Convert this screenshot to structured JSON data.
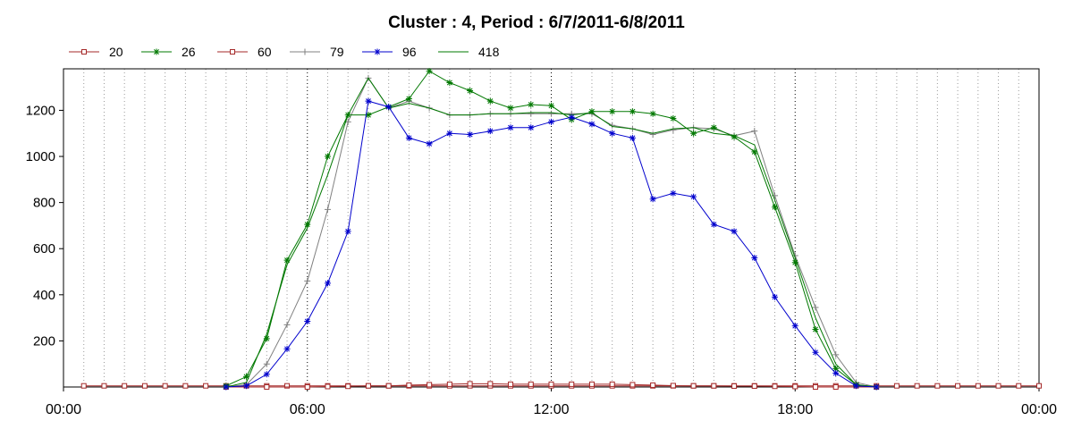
{
  "chart_data": {
    "type": "line",
    "title": "Cluster : 4, Period : 6/7/2011-6/8/2011",
    "xlabel": "",
    "ylabel": "",
    "x_range_hours": [
      0,
      24
    ],
    "x_ticks": [
      {
        "hour": 0,
        "label": "00:00"
      },
      {
        "hour": 6,
        "label": "06:00"
      },
      {
        "hour": 12,
        "label": "12:00"
      },
      {
        "hour": 18,
        "label": "18:00"
      },
      {
        "hour": 24,
        "label": "00:00"
      }
    ],
    "ylim": [
      0,
      1380
    ],
    "y_ticks": [
      200,
      400,
      600,
      800,
      1000,
      1200
    ],
    "grid": "vertical dotted lines every 0.5 hour",
    "legend_position": "top-left",
    "series": [
      {
        "name": "20",
        "color": "#a52a2a",
        "marker": "square",
        "points": [
          [
            0.5,
            5
          ],
          [
            1,
            5
          ],
          [
            1.5,
            5
          ],
          [
            2,
            5
          ],
          [
            2.5,
            5
          ],
          [
            3,
            5
          ],
          [
            3.5,
            5
          ],
          [
            4,
            5
          ],
          [
            4.5,
            5
          ],
          [
            5,
            5
          ],
          [
            5.5,
            5
          ],
          [
            6,
            5
          ],
          [
            6.5,
            5
          ],
          [
            7,
            5
          ],
          [
            7.5,
            5
          ],
          [
            8,
            5
          ],
          [
            8.5,
            5
          ],
          [
            9,
            5
          ],
          [
            9.5,
            5
          ],
          [
            10,
            5
          ],
          [
            10.5,
            5
          ],
          [
            11,
            5
          ],
          [
            11.5,
            5
          ],
          [
            12,
            5
          ],
          [
            12.5,
            5
          ],
          [
            13,
            5
          ],
          [
            13.5,
            5
          ],
          [
            14,
            5
          ],
          [
            14.5,
            5
          ],
          [
            15,
            5
          ],
          [
            15.5,
            5
          ],
          [
            16,
            5
          ],
          [
            16.5,
            5
          ],
          [
            17,
            5
          ],
          [
            17.5,
            5
          ],
          [
            18,
            5
          ],
          [
            18.5,
            5
          ],
          [
            19,
            5
          ],
          [
            19.5,
            5
          ],
          [
            20,
            5
          ],
          [
            20.5,
            5
          ],
          [
            21,
            5
          ],
          [
            21.5,
            5
          ],
          [
            22,
            5
          ],
          [
            22.5,
            5
          ],
          [
            23,
            5
          ],
          [
            23.5,
            5
          ],
          [
            24,
            5
          ]
        ]
      },
      {
        "name": "26",
        "color": "#007800",
        "marker": "asterisk",
        "points": [
          [
            4,
            5
          ],
          [
            4.5,
            45
          ],
          [
            5,
            210
          ],
          [
            5.5,
            550
          ],
          [
            6,
            705
          ],
          [
            6.5,
            1000
          ],
          [
            7,
            1180
          ],
          [
            7.5,
            1180
          ],
          [
            8,
            1215
          ],
          [
            8.5,
            1250
          ],
          [
            9,
            1370
          ],
          [
            9.5,
            1320
          ],
          [
            10,
            1285
          ],
          [
            10.5,
            1240
          ],
          [
            11,
            1210
          ],
          [
            11.5,
            1225
          ],
          [
            12,
            1220
          ],
          [
            12.5,
            1160
          ],
          [
            13,
            1195
          ],
          [
            13.5,
            1195
          ],
          [
            14,
            1195
          ],
          [
            14.5,
            1185
          ],
          [
            15,
            1165
          ],
          [
            15.5,
            1100
          ],
          [
            16,
            1125
          ],
          [
            16.5,
            1085
          ],
          [
            17,
            1020
          ],
          [
            17.5,
            780
          ],
          [
            18,
            540
          ],
          [
            18.5,
            250
          ],
          [
            19,
            80
          ],
          [
            19.5,
            10
          ],
          [
            20,
            0
          ]
        ]
      },
      {
        "name": "60",
        "color": "#a52a2a",
        "marker": "square",
        "points": [
          [
            4,
            0
          ],
          [
            5,
            0
          ],
          [
            6,
            0
          ],
          [
            6.5,
            2
          ],
          [
            7,
            3
          ],
          [
            7.5,
            5
          ],
          [
            8,
            5
          ],
          [
            8.5,
            8
          ],
          [
            9,
            10
          ],
          [
            9.5,
            12
          ],
          [
            10,
            14
          ],
          [
            10.5,
            14
          ],
          [
            11,
            12
          ],
          [
            11.5,
            12
          ],
          [
            12,
            12
          ],
          [
            12.5,
            12
          ],
          [
            13,
            12
          ],
          [
            13.5,
            12
          ],
          [
            14,
            10
          ],
          [
            14.5,
            8
          ],
          [
            15,
            6
          ],
          [
            15.5,
            5
          ],
          [
            16,
            5
          ],
          [
            16.5,
            4
          ],
          [
            17,
            4
          ],
          [
            17.5,
            3
          ],
          [
            18,
            2
          ],
          [
            18.5,
            0
          ],
          [
            19,
            0
          ],
          [
            20,
            0
          ]
        ]
      },
      {
        "name": "79",
        "color": "#808080",
        "marker": "plus",
        "points": [
          [
            4,
            0
          ],
          [
            4.5,
            10
          ],
          [
            5,
            100
          ],
          [
            5.5,
            270
          ],
          [
            6,
            460
          ],
          [
            6.5,
            770
          ],
          [
            7,
            1150
          ],
          [
            7.5,
            1340
          ],
          [
            8,
            1210
          ],
          [
            8.5,
            1240
          ],
          [
            9,
            1210
          ],
          [
            9.5,
            1180
          ],
          [
            10,
            1180
          ],
          [
            10.5,
            1185
          ],
          [
            11,
            1185
          ],
          [
            11.5,
            1185
          ],
          [
            12,
            1185
          ],
          [
            12.5,
            1185
          ],
          [
            13,
            1185
          ],
          [
            13.5,
            1135
          ],
          [
            14,
            1120
          ],
          [
            14.5,
            1095
          ],
          [
            15,
            1115
          ],
          [
            15.5,
            1125
          ],
          [
            16,
            1120
          ],
          [
            16.5,
            1090
          ],
          [
            17,
            1110
          ],
          [
            17.5,
            830
          ],
          [
            18,
            570
          ],
          [
            18.5,
            345
          ],
          [
            19,
            140
          ],
          [
            19.5,
            20
          ],
          [
            20,
            0
          ]
        ]
      },
      {
        "name": "96",
        "color": "#0000cd",
        "marker": "asterisk",
        "points": [
          [
            4,
            0
          ],
          [
            4.5,
            5
          ],
          [
            5,
            55
          ],
          [
            5.5,
            165
          ],
          [
            6,
            285
          ],
          [
            6.5,
            450
          ],
          [
            7,
            675
          ],
          [
            7.5,
            1240
          ],
          [
            8,
            1215
          ],
          [
            8.5,
            1080
          ],
          [
            9,
            1055
          ],
          [
            9.5,
            1100
          ],
          [
            10,
            1095
          ],
          [
            10.5,
            1110
          ],
          [
            11,
            1125
          ],
          [
            11.5,
            1125
          ],
          [
            12,
            1150
          ],
          [
            12.5,
            1170
          ],
          [
            13,
            1140
          ],
          [
            13.5,
            1100
          ],
          [
            14,
            1080
          ],
          [
            14.5,
            815
          ],
          [
            15,
            840
          ],
          [
            15.5,
            825
          ],
          [
            16,
            705
          ],
          [
            16.5,
            675
          ],
          [
            17,
            560
          ],
          [
            17.5,
            390
          ],
          [
            18,
            265
          ],
          [
            18.5,
            150
          ],
          [
            19,
            60
          ],
          [
            19.5,
            5
          ],
          [
            20,
            0
          ]
        ]
      },
      {
        "name": "418",
        "color": "#007800",
        "marker": "none",
        "points": [
          [
            4,
            0
          ],
          [
            4.5,
            20
          ],
          [
            5,
            230
          ],
          [
            5.5,
            530
          ],
          [
            6,
            690
          ],
          [
            6.5,
            920
          ],
          [
            7,
            1180
          ],
          [
            7.5,
            1340
          ],
          [
            8,
            1210
          ],
          [
            8.5,
            1230
          ],
          [
            9,
            1210
          ],
          [
            9.5,
            1180
          ],
          [
            10,
            1180
          ],
          [
            10.5,
            1185
          ],
          [
            11,
            1185
          ],
          [
            11.5,
            1190
          ],
          [
            12,
            1190
          ],
          [
            12.5,
            1180
          ],
          [
            13,
            1190
          ],
          [
            13.5,
            1130
          ],
          [
            14,
            1120
          ],
          [
            14.5,
            1100
          ],
          [
            15,
            1120
          ],
          [
            15.5,
            1125
          ],
          [
            16,
            1100
          ],
          [
            16.5,
            1090
          ],
          [
            17,
            1050
          ],
          [
            17.5,
            810
          ],
          [
            18,
            560
          ],
          [
            18.5,
            300
          ],
          [
            19,
            100
          ],
          [
            19.5,
            10
          ],
          [
            20,
            0
          ]
        ]
      }
    ]
  }
}
